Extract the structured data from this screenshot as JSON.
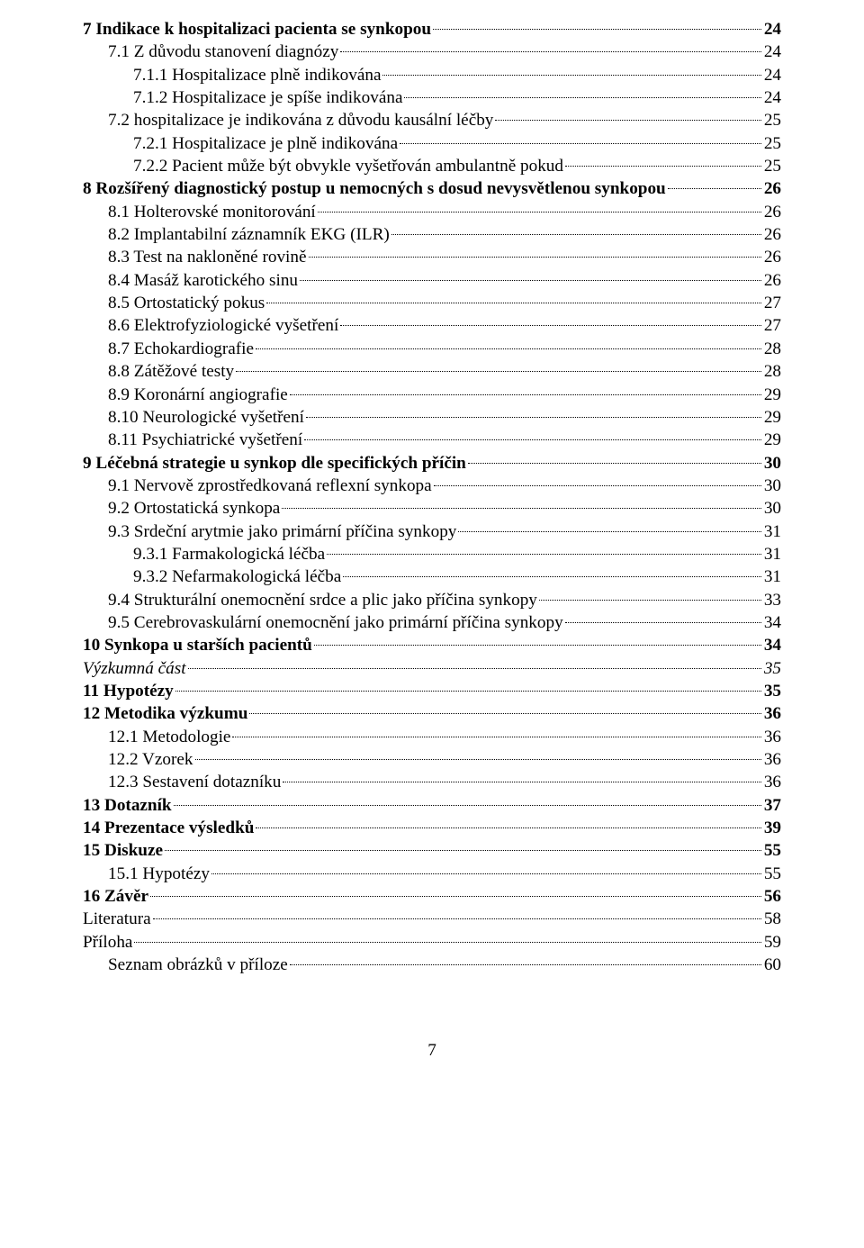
{
  "page_number": "7",
  "style": {
    "font_family": "Times New Roman",
    "font_size_pt": 14,
    "color": "#000000",
    "background": "#ffffff",
    "leader_style": "dotted"
  },
  "toc": [
    {
      "title": "7  Indikace k hospitalizaci pacienta se synkopou",
      "page": "24",
      "level": 0,
      "bold": true,
      "italic": false
    },
    {
      "title": "7.1  Z důvodu stanovení diagnózy",
      "page": "24",
      "level": 1,
      "bold": false,
      "italic": false
    },
    {
      "title": "7.1.1  Hospitalizace plně indikována",
      "page": "24",
      "level": 2,
      "bold": false,
      "italic": false
    },
    {
      "title": "7.1.2  Hospitalizace je spíše indikována",
      "page": "24",
      "level": 2,
      "bold": false,
      "italic": false
    },
    {
      "title": "7.2  hospitalizace je indikována z důvodu kausální léčby",
      "page": "25",
      "level": 1,
      "bold": false,
      "italic": false
    },
    {
      "title": "7.2.1  Hospitalizace je plně indikována",
      "page": "25",
      "level": 2,
      "bold": false,
      "italic": false
    },
    {
      "title": "7.2.2  Pacient může být obvykle vyšetřován ambulantně pokud",
      "page": "25",
      "level": 2,
      "bold": false,
      "italic": false
    },
    {
      "title": "8  Rozšířený diagnostický postup u nemocných s dosud nevysvětlenou synkopou",
      "page": "26",
      "level": 0,
      "bold": true,
      "italic": false
    },
    {
      "title": "8.1  Holterovské monitorování",
      "page": "26",
      "level": 1,
      "bold": false,
      "italic": false
    },
    {
      "title": "8.2  Implantabilní záznamník EKG (ILR)",
      "page": "26",
      "level": 1,
      "bold": false,
      "italic": false
    },
    {
      "title": "8.3  Test na nakloněné rovině",
      "page": "26",
      "level": 1,
      "bold": false,
      "italic": false
    },
    {
      "title": "8.4  Masáž karotického sinu",
      "page": "26",
      "level": 1,
      "bold": false,
      "italic": false
    },
    {
      "title": "8.5  Ortostatický pokus",
      "page": "27",
      "level": 1,
      "bold": false,
      "italic": false
    },
    {
      "title": "8.6  Elektrofyziologické vyšetření",
      "page": "27",
      "level": 1,
      "bold": false,
      "italic": false
    },
    {
      "title": "8.7  Echokardiografie",
      "page": "28",
      "level": 1,
      "bold": false,
      "italic": false
    },
    {
      "title": "8.8  Zátěžové testy",
      "page": "28",
      "level": 1,
      "bold": false,
      "italic": false
    },
    {
      "title": "8.9  Koronární angiografie",
      "page": "29",
      "level": 1,
      "bold": false,
      "italic": false
    },
    {
      "title": "8.10  Neurologické vyšetření",
      "page": "29",
      "level": 1,
      "bold": false,
      "italic": false
    },
    {
      "title": "8.11  Psychiatrické vyšetření",
      "page": "29",
      "level": 1,
      "bold": false,
      "italic": false
    },
    {
      "title": "9  Léčebná strategie u synkop dle specifických příčin",
      "page": "30",
      "level": 0,
      "bold": true,
      "italic": false
    },
    {
      "title": "9.1  Nervově zprostředkovaná reflexní synkopa",
      "page": "30",
      "level": 1,
      "bold": false,
      "italic": false
    },
    {
      "title": "9.2  Ortostatická synkopa",
      "page": "30",
      "level": 1,
      "bold": false,
      "italic": false
    },
    {
      "title": "9.3  Srdeční arytmie jako primární příčina synkopy",
      "page": "31",
      "level": 1,
      "bold": false,
      "italic": false
    },
    {
      "title": "9.3.1  Farmakologická léčba",
      "page": "31",
      "level": 2,
      "bold": false,
      "italic": false
    },
    {
      "title": "9.3.2  Nefarmakologická léčba",
      "page": "31",
      "level": 2,
      "bold": false,
      "italic": false
    },
    {
      "title": "9.4  Strukturální onemocnění srdce a plic jako příčina synkopy",
      "page": "33",
      "level": 1,
      "bold": false,
      "italic": false
    },
    {
      "title": "9.5  Cerebrovaskulární onemocnění jako primární příčina synkopy",
      "page": "34",
      "level": 1,
      "bold": false,
      "italic": false
    },
    {
      "title": "10  Synkopa u starších pacientů",
      "page": "34",
      "level": 0,
      "bold": true,
      "italic": false
    },
    {
      "title": "Výzkumná část",
      "page": "35",
      "level": 0,
      "bold": false,
      "italic": true
    },
    {
      "title": "11  Hypotézy",
      "page": "35",
      "level": 0,
      "bold": true,
      "italic": false
    },
    {
      "title": "12  Metodika výzkumu",
      "page": "36",
      "level": 0,
      "bold": true,
      "italic": false
    },
    {
      "title": "12.1  Metodologie",
      "page": "36",
      "level": 1,
      "bold": false,
      "italic": false
    },
    {
      "title": "12.2  Vzorek",
      "page": "36",
      "level": 1,
      "bold": false,
      "italic": false
    },
    {
      "title": "12.3  Sestavení dotazníku",
      "page": "36",
      "level": 1,
      "bold": false,
      "italic": false
    },
    {
      "title": "13  Dotazník",
      "page": "37",
      "level": 0,
      "bold": true,
      "italic": false
    },
    {
      "title": "14  Prezentace výsledků",
      "page": "39",
      "level": 0,
      "bold": true,
      "italic": false
    },
    {
      "title": "15  Diskuze",
      "page": "55",
      "level": 0,
      "bold": true,
      "italic": false
    },
    {
      "title": "15.1  Hypotézy",
      "page": "55",
      "level": 1,
      "bold": false,
      "italic": false
    },
    {
      "title": "16  Závěr",
      "page": "56",
      "level": 0,
      "bold": true,
      "italic": false
    },
    {
      "title": "Literatura",
      "page": "58",
      "level": 0,
      "bold": false,
      "italic": false
    },
    {
      "title": "Příloha",
      "page": "59",
      "level": 0,
      "bold": false,
      "italic": false
    },
    {
      "title": "Seznam obrázků v příloze",
      "page": "60",
      "level": 1,
      "bold": false,
      "italic": false
    }
  ]
}
